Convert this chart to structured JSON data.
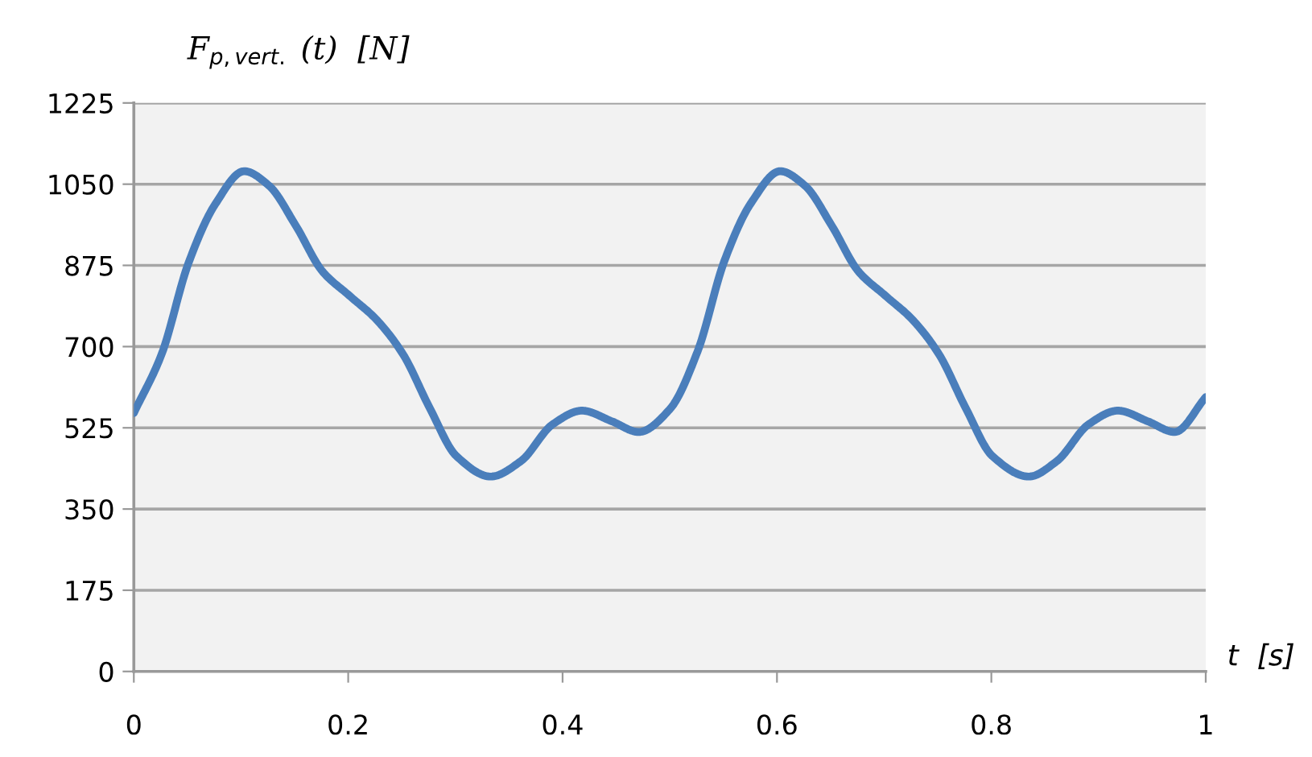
{
  "chart_data": {
    "type": "line",
    "xlabel": "t  [s]",
    "ylabel": "F$_{p,vert.}$ (t)  [N]",
    "series": [
      {
        "color": "#4a7ebb",
        "x": [
          0,
          0.026,
          0.051,
          0.076,
          0.103,
          0.126,
          0.151,
          0.176,
          0.201,
          0.226,
          0.251,
          0.276,
          0.301,
          0.333,
          0.361,
          0.391,
          0.418,
          0.446,
          0.471,
          0.5,
          0.526,
          0.551,
          0.576,
          0.603,
          0.626,
          0.651,
          0.676,
          0.701,
          0.726,
          0.751,
          0.776,
          0.801,
          0.835,
          0.861,
          0.891,
          0.918,
          0.946,
          0.971,
          1.0
        ],
        "values": [
          557,
          684,
          880,
          1007,
          1078,
          1047,
          961,
          862,
          810,
          759,
          684,
          568,
          464,
          420,
          453,
          533,
          562,
          539,
          516,
          565,
          690,
          885,
          1010,
          1078,
          1047,
          961,
          862,
          810,
          759,
          684,
          568,
          464,
          420,
          453,
          533,
          562,
          539,
          516,
          591
        ]
      }
    ],
    "xlim": [
      0,
      1
    ],
    "xticks": [
      0,
      0.2,
      0.4,
      0.6,
      0.8,
      1
    ],
    "ylim": [
      0,
      1225
    ],
    "yticks": [
      0,
      175,
      350,
      525,
      700,
      875,
      1050,
      1225
    ],
    "grid": "y",
    "marker": "none",
    "line_style": "solid"
  }
}
